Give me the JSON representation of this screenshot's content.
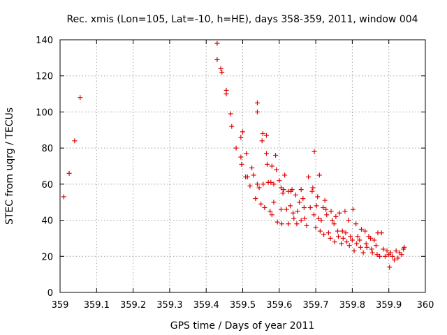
{
  "chart_data": {
    "type": "scatter",
    "title": "Rec. xmis (Lon=105, Lat=-10, h=HE), days 358-359, 2011, window 004",
    "xlabel": "GPS time / Days of year 2011",
    "ylabel": "STEC from uqrg / TECUs",
    "xlim": [
      359,
      360
    ],
    "ylim": [
      0,
      140
    ],
    "xticks": [
      359,
      359.1,
      359.2,
      359.3,
      359.4,
      359.5,
      359.6,
      359.7,
      359.8,
      359.9,
      360
    ],
    "xtick_labels": [
      "359",
      "359.1",
      "359.2",
      "359.3",
      "359.4",
      "359.5",
      "359.6",
      "359.7",
      "359.8",
      "359.9",
      "360"
    ],
    "yticks": [
      0,
      20,
      40,
      60,
      80,
      100,
      120,
      140
    ],
    "ytick_labels": [
      "0",
      "20",
      "40",
      "60",
      "80",
      "100",
      "120",
      "140"
    ],
    "grid": true,
    "marker": "+",
    "color": "#e00000",
    "series": [
      {
        "name": "STEC",
        "x": [
          359.01,
          359.025,
          359.04,
          359.055,
          359.43,
          359.43,
          359.44,
          359.443,
          359.455,
          359.455,
          359.467,
          359.47,
          359.482,
          359.495,
          359.495,
          359.497,
          359.5,
          359.508,
          359.51,
          359.513,
          359.52,
          359.525,
          359.53,
          359.535,
          359.54,
          359.54,
          359.54,
          359.545,
          359.55,
          359.553,
          359.555,
          359.556,
          359.56,
          359.565,
          359.565,
          359.567,
          359.57,
          359.575,
          359.577,
          359.58,
          359.58,
          359.585,
          359.585,
          359.59,
          359.592,
          359.595,
          359.6,
          359.605,
          359.605,
          359.607,
          359.61,
          359.612,
          359.615,
          359.62,
          359.625,
          359.625,
          359.63,
          359.632,
          359.635,
          359.638,
          359.64,
          359.645,
          359.648,
          359.65,
          359.655,
          359.66,
          359.66,
          359.665,
          359.668,
          359.67,
          359.675,
          359.68,
          359.685,
          359.69,
          359.692,
          359.695,
          359.696,
          359.7,
          359.702,
          359.705,
          359.708,
          359.71,
          359.712,
          359.715,
          359.72,
          359.722,
          359.725,
          359.728,
          359.73,
          359.735,
          359.74,
          359.742,
          359.745,
          359.75,
          359.752,
          359.755,
          359.76,
          359.762,
          359.765,
          359.77,
          359.773,
          359.775,
          359.78,
          359.782,
          359.785,
          359.79,
          359.792,
          359.795,
          359.8,
          359.802,
          359.805,
          359.81,
          359.812,
          359.815,
          359.82,
          359.823,
          359.825,
          359.83,
          359.835,
          359.838,
          359.84,
          359.845,
          359.85,
          359.853,
          359.855,
          359.86,
          359.865,
          359.868,
          359.87,
          359.875,
          359.88,
          359.885,
          359.89,
          359.895,
          359.9,
          359.902,
          359.905,
          359.91,
          359.915,
          359.92,
          359.925,
          359.93,
          359.935,
          359.94,
          359.942
        ],
        "y": [
          53,
          66,
          84,
          108,
          138,
          129,
          124,
          122,
          112,
          110,
          99,
          92,
          80,
          75,
          86,
          71,
          89,
          64,
          77,
          64,
          59,
          69,
          65,
          52,
          100,
          105,
          60,
          58,
          49,
          84,
          88,
          60,
          47,
          87,
          77,
          71,
          61,
          45,
          61,
          43,
          70,
          60,
          50,
          76,
          68,
          39,
          62,
          58,
          46,
          38,
          55,
          57,
          65,
          46,
          56,
          38,
          48,
          56,
          57,
          44,
          41,
          54,
          38,
          45,
          50,
          57,
          40,
          52,
          47,
          41,
          37,
          64,
          47,
          56,
          58,
          43,
          78,
          36,
          48,
          53,
          41,
          65,
          34,
          40,
          47,
          32,
          51,
          46,
          43,
          33,
          30,
          45,
          40,
          38,
          28,
          42,
          34,
          31,
          44,
          27,
          34,
          30,
          45,
          33,
          28,
          40,
          26,
          31,
          29,
          46,
          23,
          38,
          27,
          31,
          29,
          25,
          35,
          22,
          34,
          27,
          25,
          31,
          30,
          24,
          22,
          29,
          26,
          21,
          33,
          20,
          33,
          24,
          20,
          23,
          21,
          14,
          22,
          20,
          18,
          23,
          19,
          22,
          21,
          24,
          25
        ]
      }
    ]
  }
}
